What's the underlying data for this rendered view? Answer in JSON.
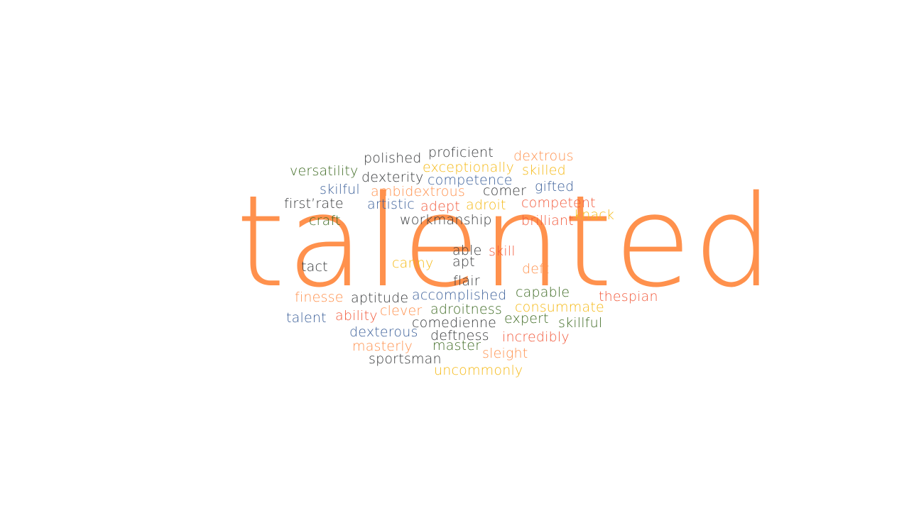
{
  "main_word": {
    "text": "talented",
    "color": "#ff914d"
  },
  "colors": {
    "dark": "#37393b",
    "orange": "#ff914d",
    "light_orange": "#ff8f4f",
    "red_orange": "#f25a3c",
    "yellow": "#f5b915",
    "blue": "#3b5f99",
    "green": "#3f6b24"
  },
  "words": [
    {
      "text": "polished",
      "color": "dark"
    },
    {
      "text": "proficient",
      "color": "dark"
    },
    {
      "text": "dextrous",
      "color": "orange"
    },
    {
      "text": "versatility",
      "color": "green"
    },
    {
      "text": "exceptionally",
      "color": "yellow"
    },
    {
      "text": "skilled",
      "color": "yellow"
    },
    {
      "text": "dexterity",
      "color": "dark"
    },
    {
      "text": "competence",
      "color": "blue"
    },
    {
      "text": "skilful",
      "color": "blue"
    },
    {
      "text": "ambidextrous",
      "color": "orange"
    },
    {
      "text": "comer",
      "color": "dark"
    },
    {
      "text": "gifted",
      "color": "blue"
    },
    {
      "text": "first’rate",
      "color": "dark"
    },
    {
      "text": "artistic",
      "color": "blue"
    },
    {
      "text": "adept",
      "color": "red_orange"
    },
    {
      "text": "adroit",
      "color": "yellow"
    },
    {
      "text": "competent",
      "color": "red_orange"
    },
    {
      "text": "knack",
      "color": "yellow"
    },
    {
      "text": "craft",
      "color": "green"
    },
    {
      "text": "workmanship",
      "color": "dark"
    },
    {
      "text": "brilliant",
      "color": "red_orange"
    },
    {
      "text": "able",
      "color": "dark"
    },
    {
      "text": "skill",
      "color": "red_orange"
    },
    {
      "text": "tact",
      "color": "dark"
    },
    {
      "text": "canny",
      "color": "yellow"
    },
    {
      "text": "apt",
      "color": "dark"
    },
    {
      "text": "deft",
      "color": "orange"
    },
    {
      "text": "flair",
      "color": "dark"
    },
    {
      "text": "finesse",
      "color": "orange"
    },
    {
      "text": "aptitude",
      "color": "dark"
    },
    {
      "text": "accomplished",
      "color": "blue"
    },
    {
      "text": "capable",
      "color": "green"
    },
    {
      "text": "thespian",
      "color": "red_orange"
    },
    {
      "text": "talent",
      "color": "blue"
    },
    {
      "text": "ability",
      "color": "red_orange"
    },
    {
      "text": "clever",
      "color": "orange"
    },
    {
      "text": "adroitness",
      "color": "green"
    },
    {
      "text": "consummate",
      "color": "yellow"
    },
    {
      "text": "comedienne",
      "color": "dark"
    },
    {
      "text": "expert",
      "color": "green"
    },
    {
      "text": "skillful",
      "color": "green"
    },
    {
      "text": "dexterous",
      "color": "blue"
    },
    {
      "text": "deftness",
      "color": "dark"
    },
    {
      "text": "incredibly",
      "color": "red_orange"
    },
    {
      "text": "masterly",
      "color": "orange"
    },
    {
      "text": "master",
      "color": "green"
    },
    {
      "text": "sleight",
      "color": "orange"
    },
    {
      "text": "sportsman",
      "color": "dark"
    },
    {
      "text": "uncommonly",
      "color": "yellow"
    }
  ]
}
